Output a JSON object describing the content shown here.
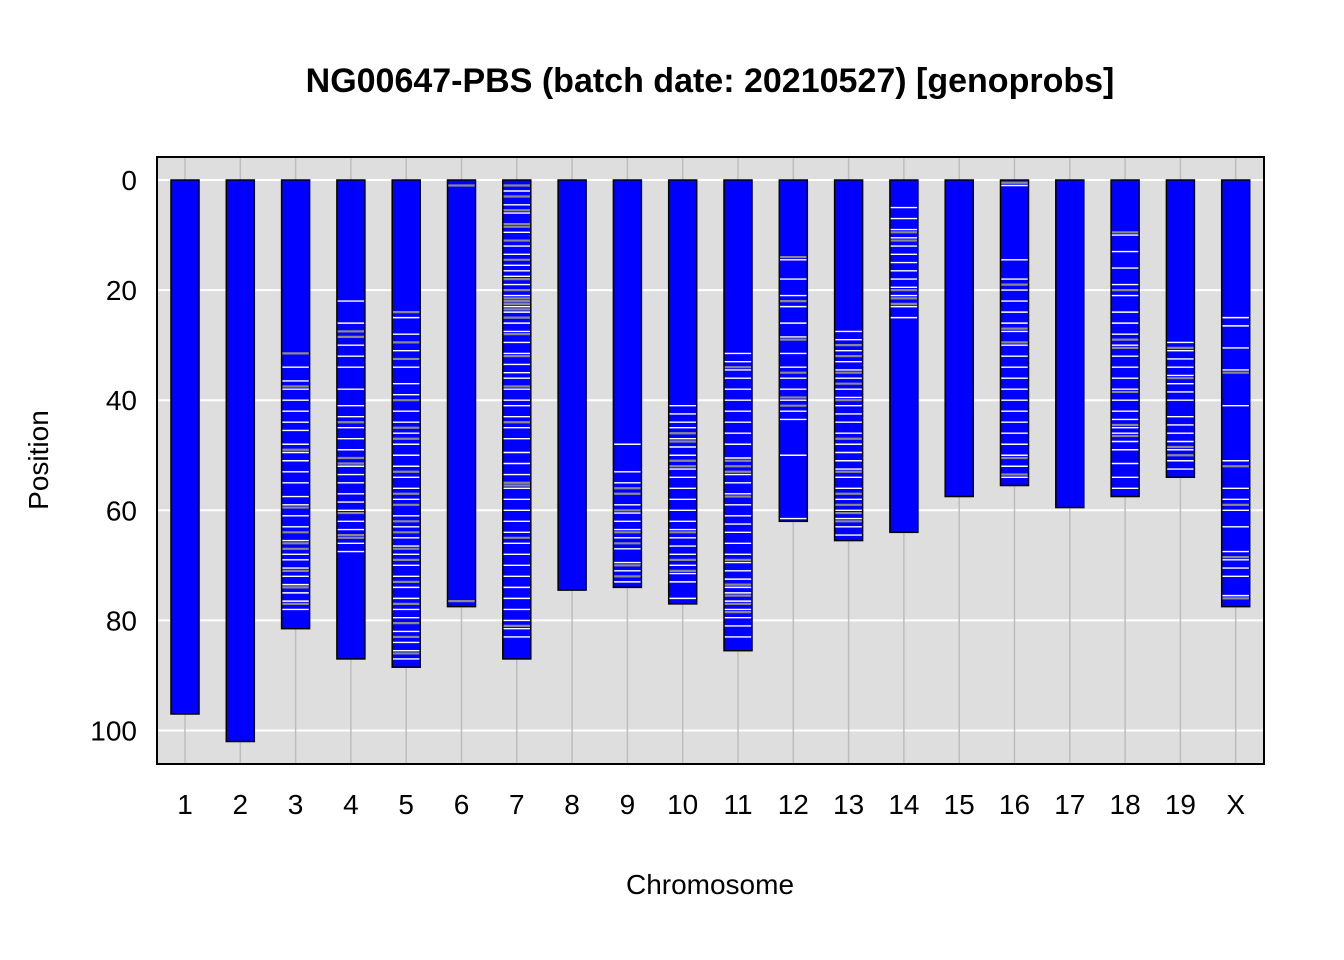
{
  "chart_data": {
    "type": "ideogram",
    "title": "NG00647-PBS (batch date: 20210527) [genoprobs]",
    "xlabel": "Chromosome",
    "ylabel": "Position",
    "ylim": [
      0,
      104
    ],
    "y_inverted": true,
    "y_ticks": [
      0,
      20,
      40,
      60,
      80,
      100
    ],
    "grid": true,
    "colors": {
      "panel_background": "#dedede",
      "grid_line": "#ffffff",
      "vertical_grid": "#bdbdbd",
      "chromosome_fill": "#0000ff",
      "chromosome_border": "#000000",
      "marker_white": "#ffffff",
      "marker_gray": "#8a8a8a"
    },
    "chromosomes": [
      {
        "name": "1",
        "length": 97.0,
        "markers_white": [],
        "markers_gray": []
      },
      {
        "name": "2",
        "length": 102.0,
        "markers_white": [],
        "markers_gray": []
      },
      {
        "name": "3",
        "length": 81.5,
        "markers_white": [
          34,
          36.5,
          38,
          40,
          42,
          44,
          45.5,
          48,
          49.5,
          51,
          53,
          55,
          57.5,
          59,
          61,
          63,
          65.5,
          68,
          69,
          70.5,
          72,
          73.5,
          75,
          76.5,
          78
        ],
        "markers_gray": [
          31.5,
          37.5,
          49,
          59.5,
          64,
          66,
          67,
          71,
          74,
          77
        ]
      },
      {
        "name": "4",
        "length": 87.0,
        "markers_white": [
          22,
          26,
          30,
          32,
          34,
          38,
          41,
          43,
          45,
          47,
          49,
          52,
          53.5,
          55,
          57,
          58.5,
          60,
          62,
          63.5,
          66,
          67.5
        ],
        "markers_gray": [
          27.5,
          28.5,
          44,
          50.5,
          51.5,
          60.5,
          64.5,
          65
        ]
      },
      {
        "name": "5",
        "length": 88.5,
        "markers_white": [
          25,
          28,
          31,
          34,
          37,
          39,
          42,
          44,
          46,
          48,
          50,
          52,
          54,
          56,
          58,
          61,
          63,
          65,
          66.5,
          68,
          70,
          72,
          74,
          76,
          78,
          79.5,
          82,
          84,
          85.5,
          87
        ],
        "markers_gray": [
          24,
          29.5,
          32.5,
          40,
          45,
          47,
          53,
          57,
          59,
          62,
          64,
          67,
          69,
          73,
          77,
          80.5,
          83,
          86
        ]
      },
      {
        "name": "6",
        "length": 77.5,
        "markers_white": [],
        "markers_gray": [
          1,
          76.5
        ]
      },
      {
        "name": "7",
        "length": 87.0,
        "markers_white": [
          2,
          4.5,
          6,
          9.5,
          12,
          13.5,
          15.5,
          16.5,
          17.5,
          19,
          21,
          23,
          24,
          26,
          27.5,
          29.5,
          31.5,
          33.5,
          35,
          36,
          38,
          40,
          41,
          43,
          45,
          47,
          49.5,
          51.5,
          53.5,
          56,
          58,
          60,
          62,
          64,
          66,
          68,
          70,
          72,
          74,
          76,
          78,
          80,
          81.5,
          83
        ],
        "markers_gray": [
          1,
          3,
          5.5,
          8,
          8.5,
          11,
          14.5,
          18,
          20,
          21.5,
          22,
          22.5,
          23.5,
          25,
          28,
          32,
          37.5,
          44,
          55,
          55.5,
          65,
          81
        ]
      },
      {
        "name": "8",
        "length": 74.5,
        "markers_white": [],
        "markers_gray": []
      },
      {
        "name": "9",
        "length": 74.0,
        "markers_white": [
          48,
          53,
          55,
          59,
          60.5,
          62,
          63.5,
          65,
          67,
          69.5,
          71,
          73
        ],
        "markers_gray": [
          56,
          57,
          60,
          64,
          66,
          70,
          72
        ]
      },
      {
        "name": "10",
        "length": 77.0,
        "markers_white": [
          41,
          42.5,
          44,
          45,
          47,
          48.5,
          50,
          52.5,
          54,
          56,
          58,
          60,
          62,
          63.5,
          65,
          66.5,
          68,
          70,
          71.5,
          73,
          76
        ],
        "markers_gray": [
          46,
          47.5,
          51,
          52,
          64,
          69,
          71
        ]
      },
      {
        "name": "11",
        "length": 85.5,
        "markers_white": [
          31.5,
          33,
          34.5,
          36,
          38,
          40,
          42,
          44,
          46,
          48,
          50.5,
          53.5,
          55,
          57,
          59,
          61,
          62.5,
          64,
          66,
          68,
          69.5,
          71,
          72.5,
          74,
          75,
          76.5,
          78,
          79.5,
          81,
          83
        ],
        "markers_gray": [
          34,
          51,
          52,
          53,
          57.5,
          69,
          73.5,
          75.5,
          77,
          78.5
        ]
      },
      {
        "name": "12",
        "length": 62.0,
        "markers_white": [
          14.5,
          18,
          21,
          23,
          26,
          28.5,
          31.5,
          34,
          36,
          38,
          40,
          42,
          43.5,
          50,
          61.5
        ],
        "markers_gray": [
          14,
          22,
          29,
          35,
          39.5,
          41
        ]
      },
      {
        "name": "13",
        "length": 65.5,
        "markers_white": [
          27.5,
          29,
          31,
          33,
          34.5,
          36,
          38,
          39.5,
          41,
          42.5,
          44,
          46,
          48,
          49.5,
          51,
          52.5,
          54,
          56,
          58,
          60,
          61.5,
          63,
          64.5
        ],
        "markers_gray": [
          30,
          32,
          35,
          37,
          40,
          47,
          53,
          57,
          59,
          60.5,
          62
        ]
      },
      {
        "name": "14",
        "length": 64.0,
        "markers_white": [
          5,
          7,
          9,
          10.5,
          12,
          13.5,
          15,
          16.5,
          18,
          19.5,
          21,
          23,
          25
        ],
        "markers_gray": [
          9.5,
          11,
          20,
          21.5,
          22.5
        ]
      },
      {
        "name": "15",
        "length": 57.5,
        "markers_white": [],
        "markers_gray": []
      },
      {
        "name": "16",
        "length": 55.5,
        "markers_white": [
          1,
          14.5,
          18,
          20,
          22,
          24,
          26,
          27.5,
          30,
          32,
          34,
          36,
          38,
          40,
          42,
          44,
          46,
          48,
          50,
          52,
          54
        ],
        "markers_gray": [
          0.5,
          19,
          27,
          29.5,
          50.5,
          53.5
        ]
      },
      {
        "name": "17",
        "length": 59.5,
        "markers_white": [],
        "markers_gray": []
      },
      {
        "name": "18",
        "length": 57.5,
        "markers_white": [
          10,
          13,
          16,
          19,
          21,
          24,
          26,
          28,
          30,
          32,
          34,
          36,
          38,
          40,
          42,
          43.5,
          45,
          46,
          47.5,
          49,
          51.5,
          54,
          56
        ],
        "markers_gray": [
          9.5,
          20,
          29,
          30.5,
          38.5,
          44.5,
          46.5
        ]
      },
      {
        "name": "19",
        "length": 54.0,
        "markers_white": [
          29.5,
          31,
          32.5,
          34,
          35.5,
          37,
          38.5,
          40,
          43,
          44.5,
          46,
          47.5,
          49,
          51,
          52.5
        ],
        "markers_gray": [
          30.5,
          36,
          48.5,
          50
        ]
      },
      {
        "name": "X",
        "length": 77.5,
        "markers_white": [
          25,
          26.5,
          30.5,
          34.5,
          41,
          51,
          56,
          58,
          60,
          63,
          67.5,
          69,
          70.5,
          72,
          75.5
        ],
        "markers_gray": [
          35,
          52,
          59,
          68.5,
          76
        ]
      }
    ]
  }
}
